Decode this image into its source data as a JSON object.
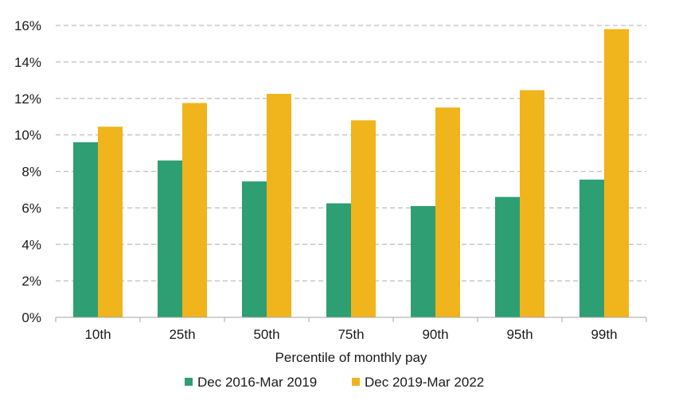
{
  "chart_data": {
    "type": "bar",
    "categories": [
      "10th",
      "25th",
      "50th",
      "75th",
      "90th",
      "95th",
      "99th"
    ],
    "series": [
      {
        "name": "Dec 2016-Mar 2019",
        "color": "#2e9e73",
        "values": [
          9.6,
          8.6,
          7.45,
          6.25,
          6.1,
          6.6,
          7.55
        ]
      },
      {
        "name": "Dec 2019-Mar 2022",
        "color": "#f0b41c",
        "values": [
          10.45,
          11.75,
          12.25,
          10.8,
          11.5,
          12.45,
          15.8
        ]
      }
    ],
    "title": "",
    "xlabel": "Percentile of monthly pay",
    "ylabel": "",
    "ylim": [
      0,
      16
    ],
    "yticks": [
      0,
      2,
      4,
      6,
      8,
      10,
      12,
      14,
      16
    ],
    "ytick_labels": [
      "0%",
      "2%",
      "4%",
      "6%",
      "8%",
      "10%",
      "12%",
      "14%",
      "16%"
    ],
    "grid": true,
    "grid_style": "dashed",
    "legend_position": "bottom"
  }
}
